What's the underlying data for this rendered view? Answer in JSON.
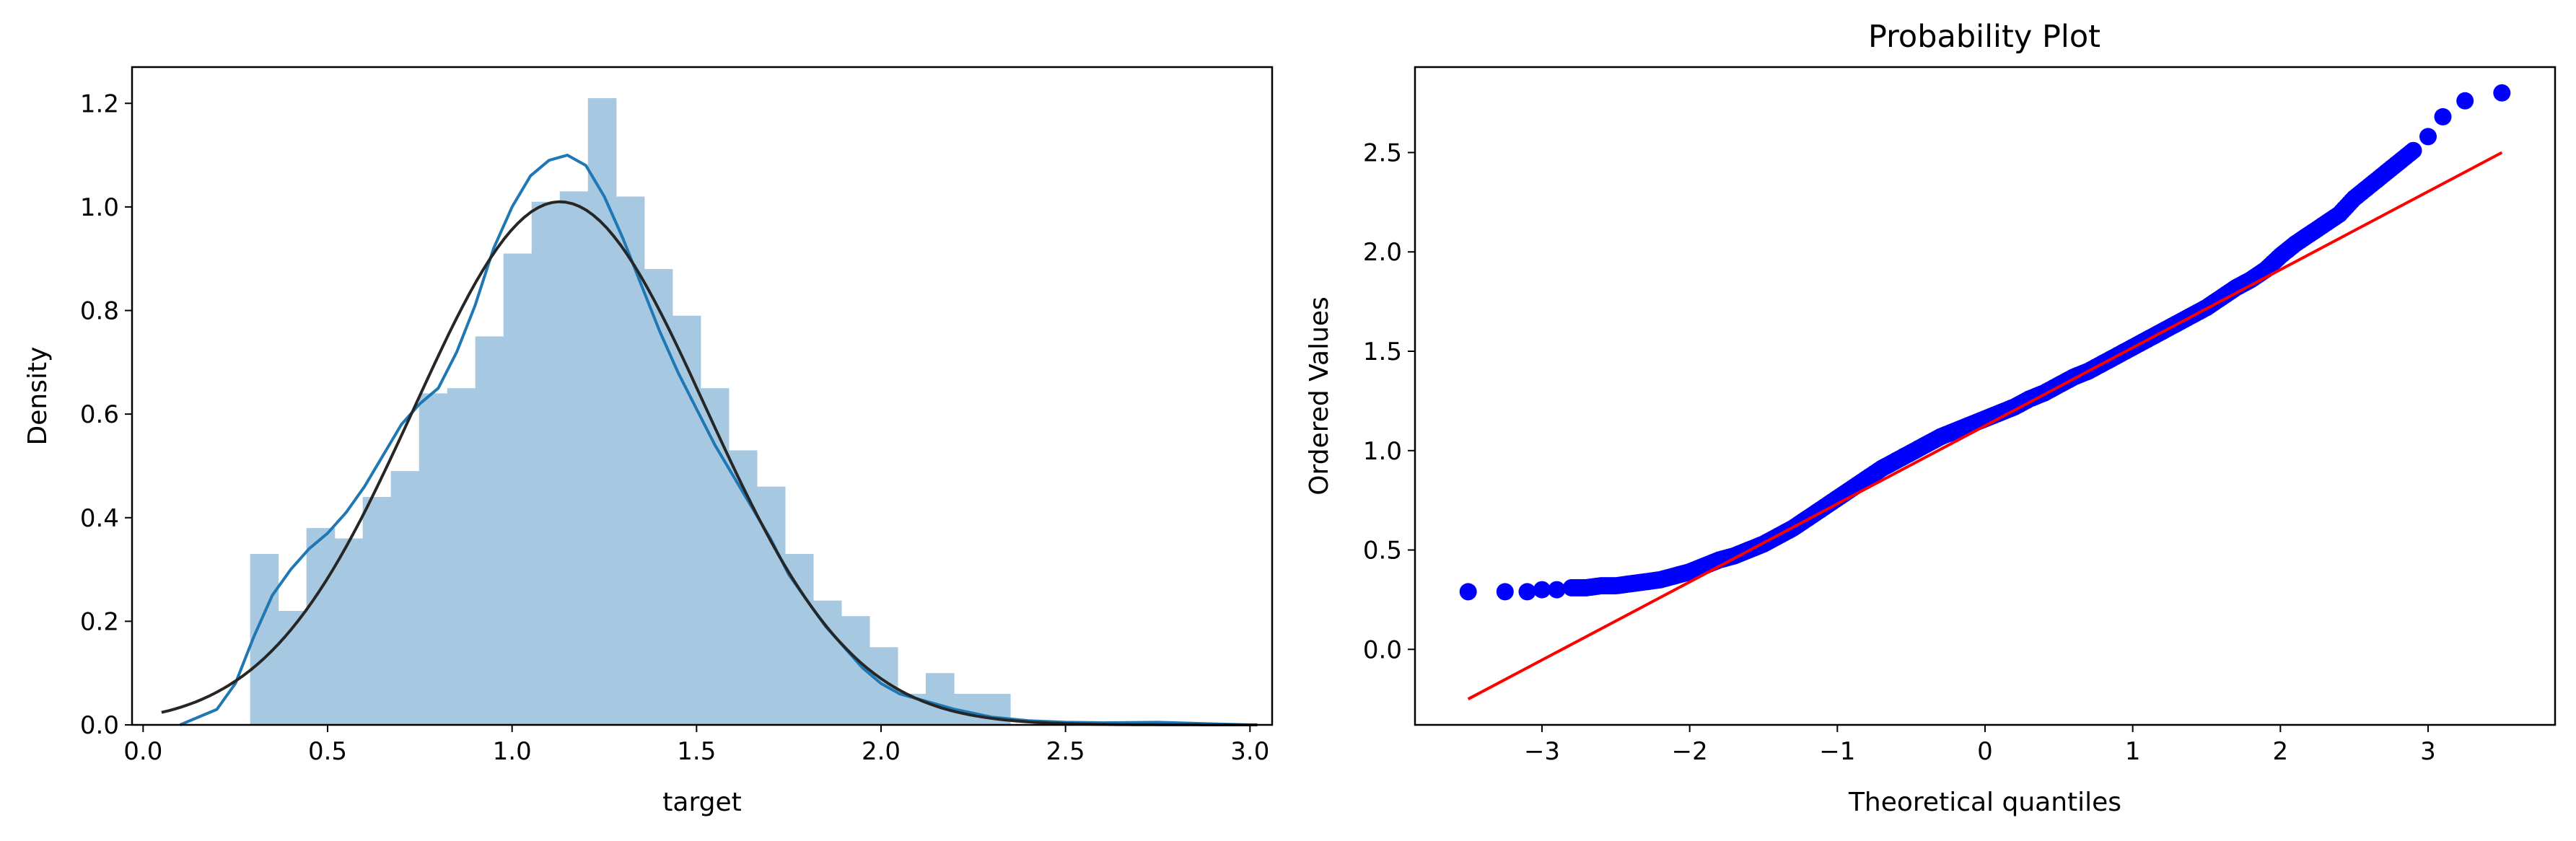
{
  "chart_data": [
    {
      "type": "bar",
      "subtype": "histogram-with-density",
      "xlabel": "target",
      "ylabel": "Density",
      "xlim": [
        -0.03,
        3.06
      ],
      "ylim": [
        0.0,
        1.27
      ],
      "xticks": [
        "0.0",
        "0.5",
        "1.0",
        "1.5",
        "2.0",
        "2.5",
        "3.0"
      ],
      "yticks": [
        "0.0",
        "0.2",
        "0.4",
        "0.6",
        "0.8",
        "1.0",
        "1.2"
      ],
      "histogram": {
        "bin_start": 0.29,
        "bin_width": 0.0763,
        "values": [
          0.33,
          0.22,
          0.38,
          0.36,
          0.44,
          0.49,
          0.64,
          0.65,
          0.75,
          0.91,
          1.01,
          1.03,
          1.21,
          1.02,
          0.88,
          0.79,
          0.65,
          0.53,
          0.46,
          0.33,
          0.24,
          0.21,
          0.15,
          0.06,
          0.1,
          0.06,
          0.06
        ],
        "color": "#a6c8e1"
      },
      "series": [
        {
          "kind": "kde",
          "color": "#1f77b4",
          "x": [
            0.1,
            0.2,
            0.25,
            0.3,
            0.35,
            0.4,
            0.45,
            0.5,
            0.55,
            0.6,
            0.65,
            0.7,
            0.75,
            0.8,
            0.85,
            0.9,
            0.95,
            1.0,
            1.05,
            1.1,
            1.15,
            1.2,
            1.25,
            1.3,
            1.35,
            1.4,
            1.45,
            1.5,
            1.55,
            1.6,
            1.65,
            1.7,
            1.75,
            1.8,
            1.85,
            1.9,
            1.95,
            2.0,
            2.05,
            2.1,
            2.2,
            2.3,
            2.4,
            2.5,
            2.6,
            2.75,
            2.9,
            3.0
          ],
          "y": [
            0.0,
            0.03,
            0.08,
            0.17,
            0.25,
            0.3,
            0.34,
            0.37,
            0.41,
            0.46,
            0.52,
            0.58,
            0.62,
            0.65,
            0.72,
            0.81,
            0.92,
            1.0,
            1.06,
            1.09,
            1.1,
            1.08,
            1.02,
            0.94,
            0.85,
            0.76,
            0.68,
            0.61,
            0.54,
            0.48,
            0.42,
            0.36,
            0.29,
            0.24,
            0.19,
            0.15,
            0.11,
            0.08,
            0.06,
            0.05,
            0.03,
            0.015,
            0.008,
            0.005,
            0.004,
            0.005,
            0.002,
            0.0
          ]
        },
        {
          "kind": "normal-fit",
          "color": "#262626",
          "mean": 1.13,
          "std": 0.395,
          "x_range": [
            0.05,
            3.02
          ]
        }
      ]
    },
    {
      "type": "scatter",
      "title": "Probability Plot",
      "xlabel": "Theoretical quantiles",
      "ylabel": "Ordered Values",
      "xlim": [
        -3.86,
        3.86
      ],
      "ylim": [
        -0.38,
        2.93
      ],
      "xticks": [
        "−3",
        "−2",
        "−1",
        "0",
        "1",
        "2",
        "3"
      ],
      "yticks": [
        "0.0",
        "0.5",
        "1.0",
        "1.5",
        "2.0",
        "2.5"
      ],
      "points": {
        "color": "#0000ff",
        "x": [
          -3.5,
          -3.25,
          -3.1,
          -3.0,
          -2.9,
          -2.8,
          -2.7,
          -2.6,
          -2.5,
          -2.4,
          -2.3,
          -2.2,
          -2.1,
          -2.0,
          -1.9,
          -1.8,
          -1.7,
          -1.6,
          -1.5,
          -1.4,
          -1.3,
          -1.2,
          -1.1,
          -1.0,
          -0.9,
          -0.8,
          -0.7,
          -0.6,
          -0.5,
          -0.4,
          -0.3,
          -0.2,
          -0.1,
          0.0,
          0.1,
          0.2,
          0.3,
          0.4,
          0.5,
          0.6,
          0.7,
          0.8,
          0.9,
          1.0,
          1.1,
          1.2,
          1.3,
          1.4,
          1.5,
          1.6,
          1.7,
          1.8,
          1.9,
          2.0,
          2.1,
          2.2,
          2.3,
          2.4,
          2.5,
          2.6,
          2.7,
          2.8,
          2.9,
          3.0,
          3.1,
          3.25,
          3.5
        ],
        "y": [
          0.29,
          0.29,
          0.29,
          0.3,
          0.3,
          0.31,
          0.31,
          0.32,
          0.32,
          0.33,
          0.34,
          0.35,
          0.37,
          0.39,
          0.42,
          0.45,
          0.47,
          0.5,
          0.53,
          0.57,
          0.61,
          0.66,
          0.71,
          0.76,
          0.81,
          0.86,
          0.91,
          0.95,
          0.99,
          1.03,
          1.07,
          1.1,
          1.13,
          1.16,
          1.19,
          1.22,
          1.26,
          1.29,
          1.33,
          1.37,
          1.4,
          1.44,
          1.48,
          1.52,
          1.56,
          1.6,
          1.64,
          1.68,
          1.72,
          1.77,
          1.82,
          1.86,
          1.91,
          1.98,
          2.04,
          2.09,
          2.14,
          2.19,
          2.27,
          2.33,
          2.39,
          2.45,
          2.51,
          2.58,
          2.68,
          2.76,
          2.8
        ]
      },
      "fit_line": {
        "color": "#ff0000",
        "x": [
          -3.5,
          3.5
        ],
        "y": [
          -0.25,
          2.5
        ]
      }
    }
  ]
}
